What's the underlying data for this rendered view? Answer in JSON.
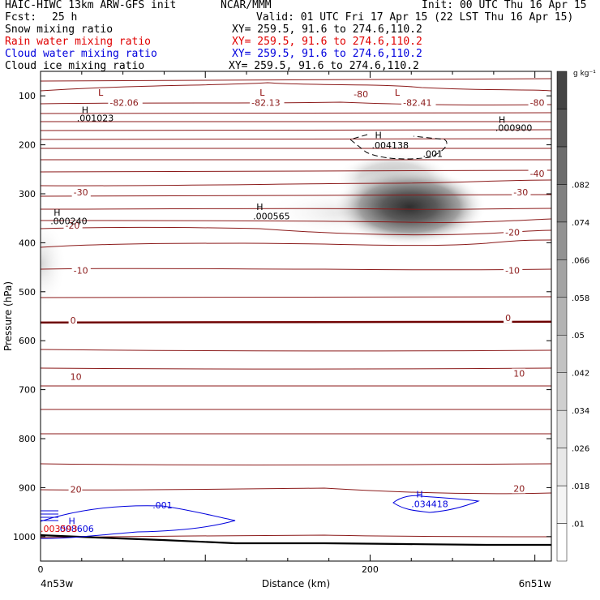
{
  "header": {
    "title": "HAIC-HIWC 13km ARW-GFS init",
    "org": "NCAR/MMM",
    "init": "Init: 00 UTC Thu 16 Apr 15",
    "fcst_label": "Fcst:",
    "fcst_value": "25 h",
    "valid": "Valid: 01 UTC Fri 17 Apr 15 (22 LST Thu 16 Apr 15)",
    "fields": [
      {
        "name": "Snow mixing ratio",
        "xy": "XY= 259.5, 91.6 to 274.6,110.2",
        "color": "#000000"
      },
      {
        "name": "Rain water mixing ratio",
        "xy": "XY= 259.5, 91.6 to 274.6,110.2",
        "color": "#e00000"
      },
      {
        "name": "Cloud water mixing ratio",
        "xy": "XY= 259.5, 91.6 to 274.6,110.2",
        "color": "#0000dd"
      },
      {
        "name": "Cloud ice mixing ratio",
        "xy": "XY= 259.5, 91.6 to 274.6,110.2",
        "color": "#000000"
      }
    ]
  },
  "chart_data": {
    "type": "cross-section",
    "xlabel": "Distance (km)",
    "ylabel": "Pressure (hPa)",
    "x_ticks": [
      0,
      200
    ],
    "x_range": [
      0,
      310
    ],
    "y_ticks": [
      100,
      200,
      300,
      400,
      500,
      600,
      700,
      800,
      900,
      1000
    ],
    "y_range": [
      50,
      1050
    ],
    "x_endpoints": {
      "left": "4n53w",
      "right": "6n51w"
    },
    "colorbar": {
      "unit": "g kg⁻¹",
      "labels": [
        ".01",
        ".018",
        ".026",
        ".034",
        ".042",
        ".05",
        ".058",
        ".066",
        ".074",
        ".082"
      ],
      "palette": [
        "#ffffff",
        "#f4f4f4",
        "#e8e8e8",
        "#dcdcdc",
        "#cfcfcf",
        "#c2c2c2",
        "#b3b3b3",
        "#a3a3a3",
        "#929292",
        "#808080",
        "#6c6c6c",
        "#585858",
        "#444444"
      ]
    },
    "temperature_labels": [
      {
        "text": "-82.06",
        "x": 42,
        "p": 117
      },
      {
        "text": "-82.13",
        "x": 128,
        "p": 117
      },
      {
        "text": "-80",
        "x": 190,
        "p": 100
      },
      {
        "text": "-82.41",
        "x": 220,
        "p": 117
      },
      {
        "text": "-80",
        "x": 297,
        "p": 117
      },
      {
        "text": "-40",
        "x": 297,
        "p": 262
      },
      {
        "text": "-30",
        "x": 20,
        "p": 300
      },
      {
        "text": "-30",
        "x": 287,
        "p": 300
      },
      {
        "text": "-20",
        "x": 15,
        "p": 368
      },
      {
        "text": "-20",
        "x": 282,
        "p": 382
      },
      {
        "text": "-10",
        "x": 20,
        "p": 460
      },
      {
        "text": "-10",
        "x": 282,
        "p": 460
      },
      {
        "text": "0",
        "x": 18,
        "p": 562
      },
      {
        "text": "0",
        "x": 282,
        "p": 557
      },
      {
        "text": "10",
        "x": 18,
        "p": 677
      },
      {
        "text": "10",
        "x": 287,
        "p": 670
      },
      {
        "text": "20",
        "x": 18,
        "p": 907
      },
      {
        "text": "20",
        "x": 287,
        "p": 905
      }
    ],
    "extrema_labels": [
      {
        "mark": "L",
        "x": 35,
        "p": 100,
        "color": "#8b0000"
      },
      {
        "mark": "L",
        "x": 133,
        "p": 100,
        "color": "#8b0000"
      },
      {
        "mark": "L",
        "x": 215,
        "p": 100,
        "color": "#8b0000"
      },
      {
        "mark": "H",
        "x": 25,
        "p": 135,
        "color": "#000000"
      },
      {
        "mark": "H",
        "x": 278,
        "p": 155,
        "color": "#000000"
      },
      {
        "mark": "H",
        "x": 203,
        "p": 187,
        "color": "#000000"
      },
      {
        "mark": "H",
        "x": 131,
        "p": 333,
        "color": "#000000"
      },
      {
        "mark": "H",
        "x": 8,
        "p": 345,
        "color": "#000000"
      },
      {
        "mark": "H",
        "x": 228,
        "p": 920,
        "color": "#0000dd"
      },
      {
        "mark": "H",
        "x": 17,
        "p": 975,
        "color": "#0000dd"
      }
    ],
    "value_labels": [
      {
        "text": ".001023",
        "x": 22,
        "p": 152,
        "color": "#000000"
      },
      {
        "text": ".000900",
        "x": 276,
        "p": 172,
        "color": "#000000"
      },
      {
        "text": ".004138",
        "x": 201,
        "p": 207,
        "color": "#000000"
      },
      {
        "text": ".001",
        "x": 232,
        "p": 225,
        "color": "#000000"
      },
      {
        "text": ".000565",
        "x": 129,
        "p": 352,
        "color": "#000000"
      },
      {
        "text": ".000240",
        "x": 6,
        "p": 362,
        "color": "#000000"
      },
      {
        "text": ".034418",
        "x": 225,
        "p": 940,
        "color": "#0000dd"
      },
      {
        "text": ".001",
        "x": 68,
        "p": 942,
        "color": "#0000dd"
      },
      {
        "text": ".008606",
        "x": 10,
        "p": 990,
        "color": "#0000dd"
      },
      {
        "text": ".003593",
        "x": 0,
        "p": 990,
        "color": "#e00000"
      }
    ]
  }
}
